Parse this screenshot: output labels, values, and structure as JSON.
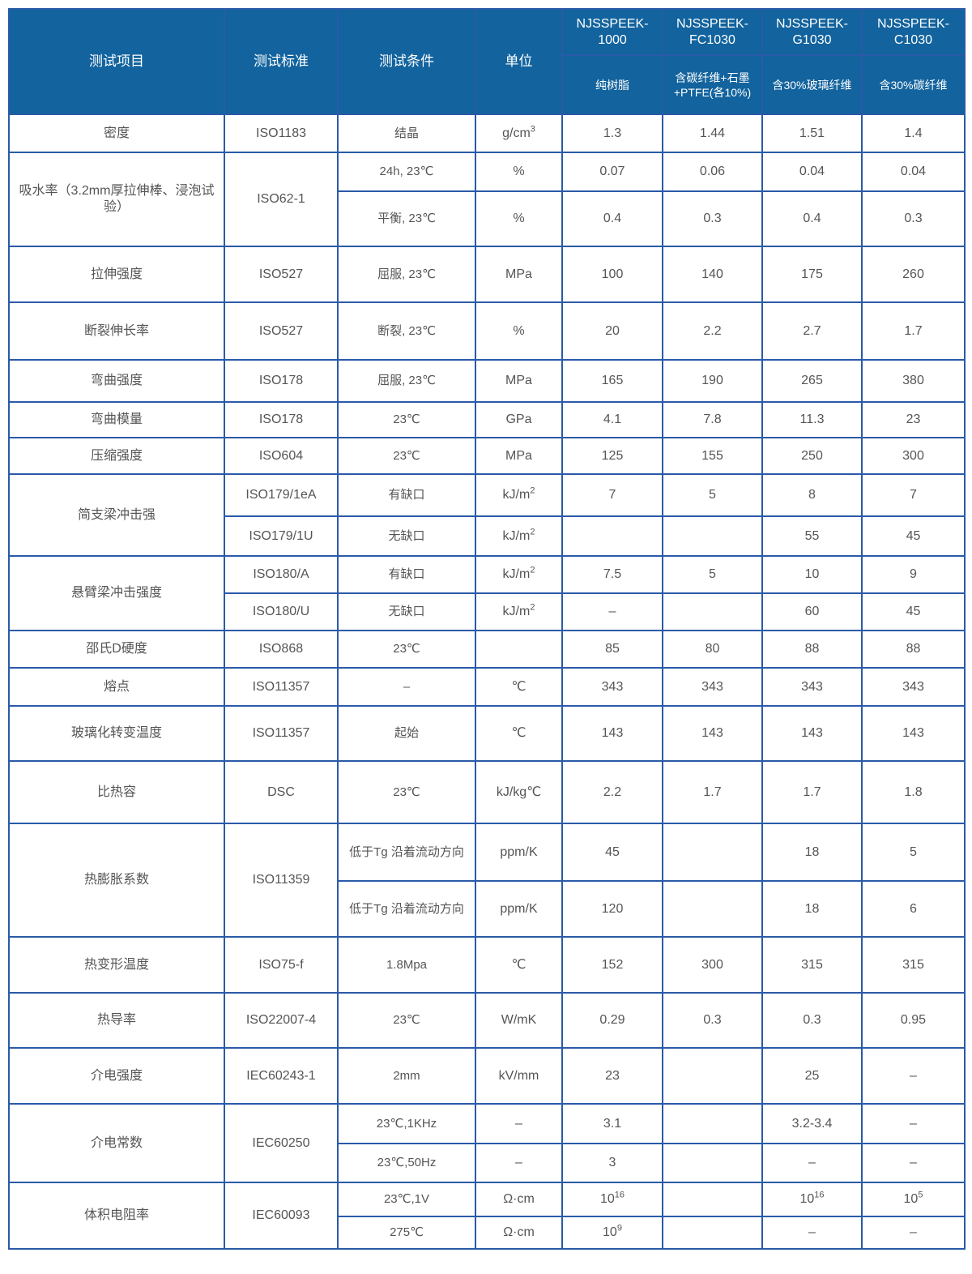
{
  "header": {
    "item": "测试项目",
    "standard": "测试标准",
    "condition": "测试条件",
    "unit": "单位",
    "models": [
      {
        "name": "NJSSPEEK-1000",
        "desc": "纯树脂"
      },
      {
        "name": "NJSSPEEK-FC1030",
        "desc": "含碳纤维+石墨+PTFE(各10%)"
      },
      {
        "name": "NJSSPEEK-G1030",
        "desc": "含30%玻璃纤维"
      },
      {
        "name": "NJSSPEEK-C1030",
        "desc": "含30%碳纤维"
      }
    ]
  },
  "colors": {
    "header_bg": "#12639e",
    "border": "#2a5aa8",
    "text": "#555555"
  },
  "rows": [
    {
      "item": "密度",
      "standard": "ISO1183",
      "sub": [
        {
          "condition": "结晶",
          "unit": {
            "base": "g/cm",
            "sup": "3"
          },
          "values": [
            "1.3",
            "1.44",
            "1.51",
            "1.4"
          ]
        }
      ]
    },
    {
      "item": "吸水率（3.2mm厚拉伸棒、浸泡试验）",
      "standard": "ISO62-1",
      "sub": [
        {
          "condition": "24h, 23℃",
          "unit": "%",
          "values": [
            "0.07",
            "0.06",
            "0.04",
            "0.04"
          ]
        },
        {
          "condition": "平衡, 23℃",
          "unit": "%",
          "values": [
            "0.4",
            "0.3",
            "0.4",
            "0.3"
          ]
        }
      ]
    },
    {
      "item": "拉伸强度",
      "standard": "ISO527",
      "sub": [
        {
          "condition": "屈服, 23℃",
          "unit": "MPa",
          "values": [
            "100",
            "140",
            "175",
            "260"
          ]
        }
      ]
    },
    {
      "item": "断裂伸长率",
      "standard": "ISO527",
      "sub": [
        {
          "condition": "断裂, 23℃",
          "unit": "%",
          "values": [
            "20",
            "2.2",
            "2.7",
            "1.7"
          ]
        }
      ]
    },
    {
      "item": "弯曲强度",
      "standard": "ISO178",
      "sub": [
        {
          "condition": "屈服, 23℃",
          "unit": "MPa",
          "values": [
            "165",
            "190",
            "265",
            "380"
          ]
        }
      ]
    },
    {
      "item": "弯曲模量",
      "standard": "ISO178",
      "sub": [
        {
          "condition": "23℃",
          "unit": "GPa",
          "values": [
            "4.1",
            "7.8",
            "11.3",
            "23"
          ]
        }
      ]
    },
    {
      "item": "压缩强度",
      "standard": "ISO604",
      "sub": [
        {
          "condition": "23℃",
          "unit": "MPa",
          "values": [
            "125",
            "155",
            "250",
            "300"
          ]
        }
      ]
    },
    {
      "item": "简支梁冲击强",
      "sub": [
        {
          "standard": "ISO179/1eA",
          "condition": "有缺口",
          "unit": {
            "base": "kJ/m",
            "sup": "2"
          },
          "values": [
            "7",
            "5",
            "8",
            "7"
          ]
        },
        {
          "standard": "ISO179/1U",
          "condition": "无缺口",
          "unit": {
            "base": "kJ/m",
            "sup": "2"
          },
          "values": [
            "",
            "",
            "55",
            "45"
          ]
        }
      ]
    },
    {
      "item": "悬臂梁冲击强度",
      "sub": [
        {
          "standard": "ISO180/A",
          "condition": "有缺口",
          "unit": {
            "base": "kJ/m",
            "sup": "2"
          },
          "values": [
            "7.5",
            "5",
            "10",
            "9"
          ]
        },
        {
          "standard": "ISO180/U",
          "condition": "无缺口",
          "unit": {
            "base": "kJ/m",
            "sup": "2"
          },
          "values": [
            "–",
            "",
            "60",
            "45"
          ]
        }
      ]
    },
    {
      "item": "邵氏D硬度",
      "standard": "ISO868",
      "sub": [
        {
          "condition": "23℃",
          "unit": "",
          "values": [
            "85",
            "80",
            "88",
            "88"
          ]
        }
      ]
    },
    {
      "item": "熔点",
      "standard": "ISO11357",
      "sub": [
        {
          "condition": "–",
          "unit": "℃",
          "values": [
            "343",
            "343",
            "343",
            "343"
          ]
        }
      ]
    },
    {
      "item": "玻璃化转变温度",
      "standard": "ISO11357",
      "sub": [
        {
          "condition": "起始",
          "unit": "℃",
          "values": [
            "143",
            "143",
            "143",
            "143"
          ]
        }
      ]
    },
    {
      "item": "比热容",
      "standard": "DSC",
      "sub": [
        {
          "condition": "23℃",
          "unit": "kJ/kg℃",
          "values": [
            "2.2",
            "1.7",
            "1.7",
            "1.8"
          ]
        }
      ]
    },
    {
      "item": "热膨胀系数",
      "standard": "ISO11359",
      "sub": [
        {
          "condition": "低于Tg 沿着流动方向",
          "unit": "ppm/K",
          "values": [
            "45",
            "",
            "18",
            "5"
          ]
        },
        {
          "condition": "低于Tg 沿着流动方向",
          "unit": "ppm/K",
          "values": [
            "120",
            "",
            "18",
            "6"
          ]
        }
      ]
    },
    {
      "item": "热变形温度",
      "standard": "ISO75-f",
      "sub": [
        {
          "condition": "1.8Mpa",
          "unit": "℃",
          "values": [
            "152",
            "300",
            "315",
            "315"
          ]
        }
      ]
    },
    {
      "item": "热导率",
      "standard": "ISO22007-4",
      "sub": [
        {
          "condition": "23℃",
          "unit": "W/mK",
          "values": [
            "0.29",
            "0.3",
            "0.3",
            "0.95"
          ]
        }
      ]
    },
    {
      "item": "介电强度",
      "standard": "IEC60243-1",
      "sub": [
        {
          "condition": "2mm",
          "unit": "kV/mm",
          "values": [
            "23",
            "",
            "25",
            "–"
          ]
        }
      ]
    },
    {
      "item": "介电常数",
      "standard": "IEC60250",
      "sub": [
        {
          "condition": "23℃,1KHz",
          "unit": "–",
          "values": [
            "3.1",
            "",
            "3.2-3.4",
            "–"
          ]
        },
        {
          "condition": "23℃,50Hz",
          "unit": "–",
          "values": [
            "3",
            "",
            "–",
            "–"
          ]
        }
      ]
    },
    {
      "item": "体积电阻率",
      "standard": "IEC60093",
      "sub": [
        {
          "condition": "23℃,1V",
          "unit": "Ω·cm",
          "values": [
            {
              "base": "10",
              "sup": "16"
            },
            "",
            {
              "base": "10",
              "sup": "16"
            },
            {
              "base": "10",
              "sup": "5"
            }
          ]
        },
        {
          "condition": "275℃",
          "unit": "Ω·cm",
          "values": [
            {
              "base": "10",
              "sup": "9"
            },
            "",
            "–",
            "–"
          ]
        }
      ]
    }
  ]
}
